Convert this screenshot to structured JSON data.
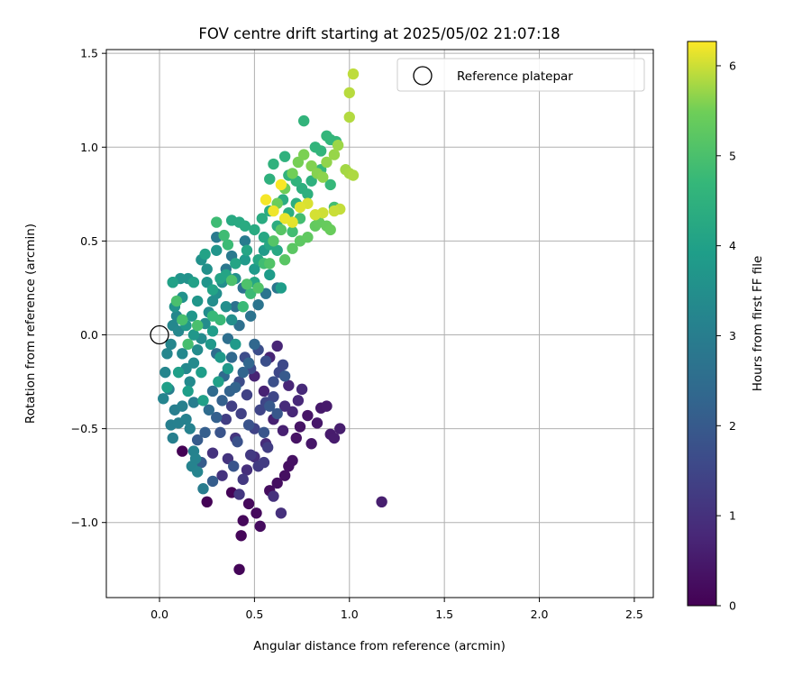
{
  "chart_data": {
    "type": "scatter",
    "title": "FOV centre drift starting at 2025/05/02 21:07:18",
    "xlabel": "Angular distance from reference (arcmin)",
    "ylabel": "Rotation from reference (arcmin)",
    "xlim": [
      -0.28,
      2.6
    ],
    "ylim": [
      -1.4,
      1.52
    ],
    "xticks": [
      0.0,
      0.5,
      1.0,
      1.5,
      2.0,
      2.5
    ],
    "xtick_labels": [
      "0.0",
      "0.5",
      "1.0",
      "1.5",
      "2.0",
      "2.5"
    ],
    "yticks": [
      -1.0,
      -0.5,
      0.0,
      0.5,
      1.0,
      1.5
    ],
    "ytick_labels": [
      "−1.0",
      "−0.5",
      "0.0",
      "0.5",
      "1.0",
      "1.5"
    ],
    "grid": true,
    "legend": {
      "placement": "upper-right",
      "entries": [
        "Reference platepar"
      ]
    },
    "reference_point": {
      "x": 0.0,
      "y": 0.0,
      "marker": "open-circle"
    },
    "colorbar": {
      "label": "Hours from first FF file",
      "colormap": "viridis",
      "range": [
        0,
        6.27
      ],
      "ticks": [
        0,
        1,
        2,
        3,
        4,
        5,
        6
      ],
      "tick_labels": [
        "0",
        "1",
        "2",
        "3",
        "4",
        "5",
        "6"
      ]
    },
    "series": [
      {
        "color_value_range": [
          0,
          1
        ],
        "points": [
          [
            0.12,
            -0.62
          ],
          [
            0.25,
            -0.89
          ],
          [
            0.38,
            -0.84
          ],
          [
            0.42,
            -1.25
          ],
          [
            0.43,
            -1.07
          ],
          [
            0.44,
            -0.99
          ],
          [
            0.47,
            -0.9
          ],
          [
            0.51,
            -0.95
          ],
          [
            0.53,
            -1.02
          ],
          [
            0.58,
            -0.83
          ],
          [
            0.62,
            -0.79
          ],
          [
            0.66,
            -0.75
          ],
          [
            0.68,
            -0.7
          ],
          [
            0.7,
            -0.67
          ],
          [
            0.72,
            -0.55
          ],
          [
            0.74,
            -0.49
          ],
          [
            0.78,
            -0.43
          ],
          [
            0.8,
            -0.58
          ],
          [
            0.83,
            -0.47
          ],
          [
            0.85,
            -0.39
          ],
          [
            0.88,
            -0.38
          ],
          [
            0.9,
            -0.53
          ],
          [
            0.92,
            -0.55
          ],
          [
            0.95,
            -0.5
          ],
          [
            1.17,
            -0.89
          ],
          [
            0.65,
            -0.51
          ],
          [
            0.6,
            -0.45
          ],
          [
            0.55,
            -0.3
          ],
          [
            0.5,
            -0.22
          ],
          [
            0.58,
            -0.12
          ],
          [
            0.62,
            -0.06
          ],
          [
            0.68,
            -0.27
          ],
          [
            0.7,
            -0.41
          ],
          [
            0.73,
            -0.35
          ],
          [
            0.75,
            -0.29
          ],
          [
            0.66,
            -0.38
          ],
          [
            0.56,
            -0.58
          ],
          [
            0.5,
            -0.65
          ],
          [
            0.46,
            -0.72
          ],
          [
            0.64,
            -0.95
          ],
          [
            0.6,
            -0.86
          ]
        ]
      },
      {
        "color_value_range": [
          1,
          2
        ],
        "points": [
          [
            0.28,
            -0.63
          ],
          [
            0.33,
            -0.75
          ],
          [
            0.36,
            -0.66
          ],
          [
            0.4,
            -0.55
          ],
          [
            0.42,
            -0.85
          ],
          [
            0.44,
            -0.77
          ],
          [
            0.48,
            -0.64
          ],
          [
            0.52,
            -0.7
          ],
          [
            0.55,
            -0.68
          ],
          [
            0.57,
            -0.6
          ],
          [
            0.35,
            -0.45
          ],
          [
            0.38,
            -0.38
          ],
          [
            0.43,
            -0.42
          ],
          [
            0.46,
            -0.32
          ],
          [
            0.5,
            -0.5
          ],
          [
            0.53,
            -0.4
          ],
          [
            0.56,
            -0.36
          ],
          [
            0.6,
            -0.33
          ],
          [
            0.63,
            -0.2
          ],
          [
            0.65,
            -0.16
          ],
          [
            0.48,
            -0.18
          ],
          [
            0.42,
            -0.25
          ],
          [
            0.45,
            -0.12
          ],
          [
            0.52,
            -0.08
          ],
          [
            0.56,
            -0.14
          ],
          [
            0.6,
            -0.25
          ],
          [
            0.41,
            -0.57
          ],
          [
            0.47,
            -0.48
          ],
          [
            0.32,
            -0.52
          ],
          [
            0.39,
            -0.7
          ],
          [
            0.55,
            -0.52
          ],
          [
            0.62,
            -0.42
          ],
          [
            0.58,
            -0.38
          ],
          [
            0.66,
            -0.22
          ]
        ]
      },
      {
        "color_value_range": [
          2,
          3
        ],
        "points": [
          [
            0.2,
            -0.56
          ],
          [
            0.22,
            -0.68
          ],
          [
            0.28,
            -0.78
          ],
          [
            0.24,
            -0.52
          ],
          [
            0.3,
            -0.44
          ],
          [
            0.33,
            -0.35
          ],
          [
            0.37,
            -0.3
          ],
          [
            0.4,
            -0.28
          ],
          [
            0.44,
            -0.2
          ],
          [
            0.47,
            -0.15
          ],
          [
            0.5,
            -0.05
          ],
          [
            0.38,
            -0.12
          ],
          [
            0.34,
            -0.22
          ],
          [
            0.28,
            -0.3
          ],
          [
            0.26,
            -0.4
          ],
          [
            0.3,
            -0.1
          ],
          [
            0.36,
            -0.02
          ],
          [
            0.42,
            0.05
          ],
          [
            0.4,
            0.15
          ],
          [
            0.44,
            0.25
          ],
          [
            0.48,
            0.1
          ],
          [
            0.52,
            0.16
          ],
          [
            0.56,
            0.22
          ],
          [
            0.62,
            0.25
          ],
          [
            0.35,
            0.35
          ],
          [
            0.38,
            0.42
          ],
          [
            0.3,
            0.52
          ],
          [
            0.45,
            0.5
          ],
          [
            0.23,
            -0.82
          ],
          [
            0.18,
            -0.36
          ]
        ]
      },
      {
        "color_value_range": [
          3,
          4
        ],
        "points": [
          [
            0.05,
            -0.29
          ],
          [
            0.08,
            -0.4
          ],
          [
            0.06,
            -0.48
          ],
          [
            0.07,
            -0.55
          ],
          [
            0.1,
            -0.47
          ],
          [
            0.12,
            -0.38
          ],
          [
            0.14,
            -0.45
          ],
          [
            0.16,
            -0.5
          ],
          [
            0.18,
            -0.62
          ],
          [
            0.17,
            -0.7
          ],
          [
            0.19,
            -0.66
          ],
          [
            0.2,
            -0.73
          ],
          [
            0.02,
            -0.34
          ],
          [
            0.03,
            -0.2
          ],
          [
            0.04,
            -0.1
          ],
          [
            0.06,
            -0.05
          ],
          [
            0.07,
            0.05
          ],
          [
            0.09,
            0.1
          ],
          [
            0.1,
            0.02
          ],
          [
            0.12,
            -0.1
          ],
          [
            0.14,
            -0.18
          ],
          [
            0.16,
            -0.25
          ],
          [
            0.18,
            -0.15
          ],
          [
            0.2,
            -0.08
          ],
          [
            0.22,
            -0.02
          ],
          [
            0.24,
            0.06
          ],
          [
            0.26,
            0.12
          ],
          [
            0.28,
            0.18
          ],
          [
            0.3,
            0.22
          ],
          [
            0.33,
            0.28
          ],
          [
            0.35,
            0.15
          ],
          [
            0.38,
            0.08
          ],
          [
            0.4,
            0.3
          ],
          [
            0.25,
            0.35
          ],
          [
            0.22,
            0.4
          ],
          [
            0.15,
            0.3
          ],
          [
            0.12,
            0.2
          ],
          [
            0.08,
            0.15
          ],
          [
            0.11,
            0.3
          ],
          [
            0.07,
            0.28
          ],
          [
            0.3,
            0.45
          ],
          [
            0.25,
            0.28
          ],
          [
            0.2,
            0.18
          ],
          [
            0.17,
            0.1
          ],
          [
            0.14,
            0.05
          ],
          [
            0.18,
            0.0
          ],
          [
            0.27,
            -0.05
          ],
          [
            0.32,
            -0.12
          ],
          [
            0.36,
            -0.18
          ],
          [
            0.4,
            -0.05
          ],
          [
            0.45,
            0.4
          ],
          [
            0.5,
            0.35
          ],
          [
            0.55,
            0.45
          ],
          [
            0.58,
            0.32
          ],
          [
            0.64,
            0.25
          ],
          [
            0.28,
            0.02
          ],
          [
            0.22,
            -0.2
          ],
          [
            0.15,
            -0.3
          ],
          [
            0.1,
            -0.2
          ],
          [
            0.04,
            -0.28
          ],
          [
            0.23,
            -0.35
          ],
          [
            0.31,
            -0.25
          ]
        ]
      },
      {
        "color_value_range": [
          4,
          5
        ],
        "points": [
          [
            0.07,
            0.28
          ],
          [
            0.18,
            0.28
          ],
          [
            0.24,
            0.43
          ],
          [
            0.28,
            0.24
          ],
          [
            0.32,
            0.3
          ],
          [
            0.35,
            0.32
          ],
          [
            0.4,
            0.38
          ],
          [
            0.46,
            0.45
          ],
          [
            0.5,
            0.28
          ],
          [
            0.52,
            0.4
          ],
          [
            0.55,
            0.52
          ],
          [
            0.58,
            0.48
          ],
          [
            0.62,
            0.45
          ],
          [
            0.38,
            0.61
          ],
          [
            0.42,
            0.6
          ],
          [
            0.45,
            0.58
          ],
          [
            0.5,
            0.56
          ],
          [
            0.54,
            0.62
          ],
          [
            0.58,
            0.66
          ],
          [
            0.62,
            0.58
          ],
          [
            0.65,
            0.72
          ],
          [
            0.68,
            0.65
          ],
          [
            0.72,
            0.7
          ],
          [
            0.75,
            0.78
          ],
          [
            0.78,
            0.75
          ],
          [
            0.8,
            0.82
          ],
          [
            0.58,
            0.83
          ],
          [
            0.6,
            0.91
          ],
          [
            0.66,
            0.95
          ],
          [
            0.68,
            0.85
          ],
          [
            0.72,
            0.82
          ],
          [
            0.76,
            1.14
          ],
          [
            0.82,
            1.0
          ],
          [
            0.85,
            0.98
          ],
          [
            0.88,
            1.06
          ],
          [
            0.9,
            1.04
          ],
          [
            0.93,
            1.03
          ],
          [
            0.85,
            0.88
          ],
          [
            0.9,
            0.8
          ],
          [
            0.28,
            0.1
          ],
          [
            0.32,
            0.08
          ],
          [
            0.44,
            0.15
          ],
          [
            0.48,
            0.22
          ],
          [
            0.36,
            0.48
          ],
          [
            0.3,
            0.6
          ],
          [
            0.34,
            0.53
          ],
          [
            0.55,
            0.38
          ],
          [
            0.7,
            0.55
          ],
          [
            0.74,
            0.62
          ],
          [
            0.92,
            0.68
          ],
          [
            0.15,
            -0.05
          ],
          [
            0.12,
            0.08
          ],
          [
            0.09,
            0.18
          ],
          [
            0.2,
            0.05
          ]
        ]
      },
      {
        "color_value_range": [
          5,
          6.27
        ],
        "points": [
          [
            0.38,
            0.29
          ],
          [
            0.46,
            0.27
          ],
          [
            0.52,
            0.25
          ],
          [
            0.58,
            0.38
          ],
          [
            0.6,
            0.5
          ],
          [
            0.64,
            0.56
          ],
          [
            0.66,
            0.4
          ],
          [
            0.7,
            0.46
          ],
          [
            0.74,
            0.5
          ],
          [
            0.78,
            0.52
          ],
          [
            0.82,
            0.58
          ],
          [
            0.84,
            0.6
          ],
          [
            0.88,
            0.58
          ],
          [
            0.9,
            0.56
          ],
          [
            0.62,
            0.7
          ],
          [
            0.66,
            0.78
          ],
          [
            0.7,
            0.86
          ],
          [
            0.73,
            0.92
          ],
          [
            0.76,
            0.96
          ],
          [
            0.8,
            0.9
          ],
          [
            0.83,
            0.86
          ],
          [
            0.86,
            0.84
          ],
          [
            0.88,
            0.92
          ],
          [
            0.92,
            0.96
          ],
          [
            0.94,
            1.01
          ],
          [
            0.98,
            0.88
          ],
          [
            1.0,
            0.86
          ],
          [
            1.02,
            0.85
          ],
          [
            1.0,
            1.16
          ],
          [
            1.0,
            1.29
          ],
          [
            1.02,
            1.39
          ],
          [
            0.95,
            0.67
          ],
          [
            0.92,
            0.66
          ],
          [
            0.86,
            0.65
          ],
          [
            0.82,
            0.64
          ],
          [
            0.78,
            0.7
          ],
          [
            0.74,
            0.68
          ],
          [
            0.7,
            0.6
          ],
          [
            0.66,
            0.62
          ],
          [
            0.6,
            0.66
          ],
          [
            0.56,
            0.72
          ],
          [
            0.64,
            0.8
          ]
        ]
      }
    ]
  }
}
